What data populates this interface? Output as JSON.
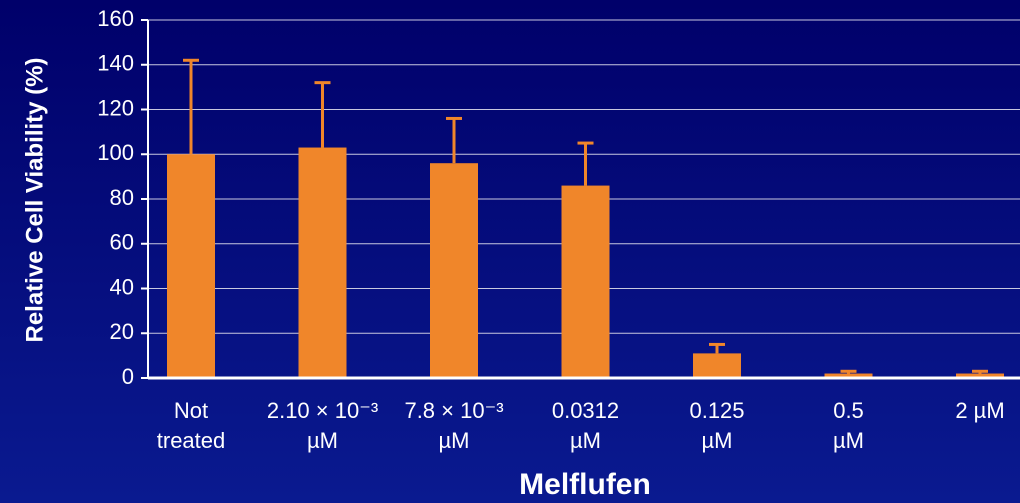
{
  "chart_data": {
    "type": "bar",
    "x_label": "Melflufen",
    "y_label": "Relative Cell Viability (%)",
    "categories": [
      [
        "Not",
        "treated"
      ],
      [
        "2.10 × 10⁻³",
        "µM"
      ],
      [
        "7.8 × 10⁻³",
        "µM"
      ],
      [
        "0.0312",
        "µM"
      ],
      [
        "0.125",
        "µM"
      ],
      [
        "0.5",
        "µM"
      ],
      [
        "2 µM"
      ]
    ],
    "values": [
      100,
      103,
      96,
      86,
      11,
      2,
      2
    ],
    "errors": [
      42,
      29,
      20,
      19,
      4,
      1,
      1
    ],
    "color": "#f0862a",
    "ylim": [
      0,
      160
    ],
    "yticks": [
      0,
      20,
      40,
      60,
      80,
      100,
      120,
      140,
      160
    ],
    "grid": true
  }
}
